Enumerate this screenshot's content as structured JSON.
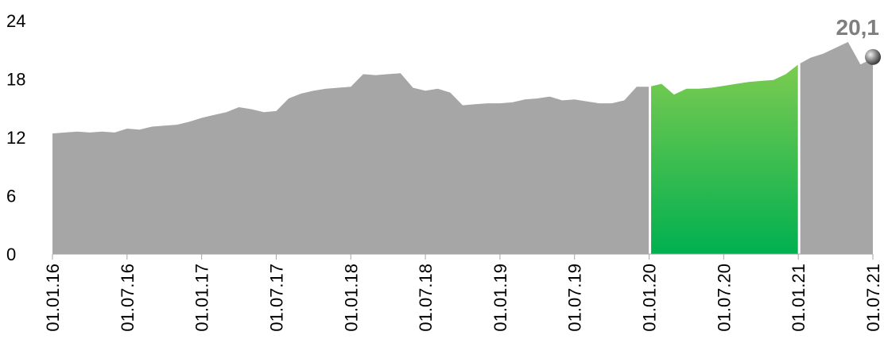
{
  "chart_data": {
    "type": "area",
    "ylim": [
      0,
      24
    ],
    "y_ticks": [
      "0",
      "6",
      "12",
      "18",
      "24"
    ],
    "y_tick_values": [
      0,
      6,
      12,
      18,
      24
    ],
    "x_ticks": [
      "01.01.16",
      "01.07.16",
      "01.01.17",
      "01.07.17",
      "01.01.18",
      "01.07.18",
      "01.01.19",
      "01.07.19",
      "01.01.20",
      "01.07.20",
      "01.01.21",
      "01.07.21"
    ],
    "last_value_label": "20,1",
    "last_value": 20.1,
    "colors": {
      "area": "#a6a6a6",
      "highlight_top": "#7ccb50",
      "highlight_bottom": "#00b050",
      "label": "#7f7f7f"
    },
    "highlight_range": [
      "01.01.20",
      "01.01.21"
    ],
    "series": [
      {
        "points": [
          [
            "01.01.16",
            12.4
          ],
          [
            "01.02.16",
            12.5
          ],
          [
            "01.03.16",
            12.6
          ],
          [
            "01.04.16",
            12.5
          ],
          [
            "01.05.16",
            12.6
          ],
          [
            "01.06.16",
            12.5
          ],
          [
            "01.07.16",
            12.9
          ],
          [
            "01.08.16",
            12.8
          ],
          [
            "01.09.16",
            13.1
          ],
          [
            "01.10.16",
            13.2
          ],
          [
            "01.11.16",
            13.3
          ],
          [
            "01.12.16",
            13.6
          ],
          [
            "01.01.17",
            14.0
          ],
          [
            "01.02.17",
            14.3
          ],
          [
            "01.03.17",
            14.6
          ],
          [
            "01.04.17",
            15.1
          ],
          [
            "01.05.17",
            14.9
          ],
          [
            "01.06.17",
            14.6
          ],
          [
            "01.07.17",
            14.7
          ],
          [
            "01.08.17",
            16.0
          ],
          [
            "01.09.17",
            16.5
          ],
          [
            "01.10.17",
            16.8
          ],
          [
            "01.11.17",
            17.0
          ],
          [
            "01.12.17",
            17.1
          ],
          [
            "01.01.18",
            17.2
          ],
          [
            "01.02.18",
            18.5
          ],
          [
            "01.03.18",
            18.4
          ],
          [
            "01.04.18",
            18.5
          ],
          [
            "01.05.18",
            18.6
          ],
          [
            "01.06.18",
            17.1
          ],
          [
            "01.07.18",
            16.8
          ],
          [
            "01.08.18",
            17.0
          ],
          [
            "01.09.18",
            16.6
          ],
          [
            "01.10.18",
            15.3
          ],
          [
            "01.11.18",
            15.4
          ],
          [
            "01.12.18",
            15.5
          ],
          [
            "01.01.19",
            15.5
          ],
          [
            "01.02.19",
            15.6
          ],
          [
            "01.03.19",
            15.9
          ],
          [
            "01.04.19",
            16.0
          ],
          [
            "01.05.19",
            16.2
          ],
          [
            "01.06.19",
            15.8
          ],
          [
            "01.07.19",
            15.9
          ],
          [
            "01.08.19",
            15.7
          ],
          [
            "01.09.19",
            15.5
          ],
          [
            "01.10.19",
            15.5
          ],
          [
            "01.11.19",
            15.8
          ],
          [
            "01.12.19",
            17.2
          ],
          [
            "01.01.20",
            17.2
          ],
          [
            "01.02.20",
            17.5
          ],
          [
            "01.03.20",
            16.4
          ],
          [
            "01.04.20",
            17.0
          ],
          [
            "01.05.20",
            17.0
          ],
          [
            "01.06.20",
            17.1
          ],
          [
            "01.07.20",
            17.3
          ],
          [
            "01.08.20",
            17.5
          ],
          [
            "01.09.20",
            17.7
          ],
          [
            "01.10.20",
            17.8
          ],
          [
            "01.11.20",
            17.9
          ],
          [
            "01.12.20",
            18.5
          ],
          [
            "01.01.21",
            19.5
          ],
          [
            "01.02.21",
            20.2
          ],
          [
            "01.03.21",
            20.6
          ],
          [
            "01.04.21",
            21.2
          ],
          [
            "01.05.21",
            21.8
          ],
          [
            "01.06.21",
            19.5
          ],
          [
            "01.07.21",
            20.1
          ]
        ]
      }
    ]
  }
}
